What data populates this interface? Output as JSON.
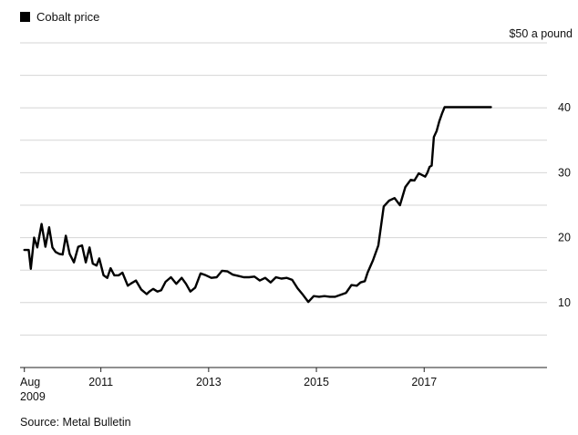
{
  "legend": {
    "label": "Cobalt price"
  },
  "source": "Source: Metal Bulletin",
  "chart_data": {
    "type": "line",
    "title": "",
    "xlabel": "",
    "ylabel": "",
    "y_unit_label": "$50 a pound",
    "ylim": [
      0,
      50
    ],
    "xlim": [
      2009.5,
      2018.4
    ],
    "grid": true,
    "legend_position": "top-left",
    "line_color": "#000000",
    "y_ticks": [
      {
        "value": 10,
        "label": "10"
      },
      {
        "value": 20,
        "label": "20"
      },
      {
        "value": 30,
        "label": "30"
      },
      {
        "value": 40,
        "label": "40"
      }
    ],
    "x_ticks": [
      {
        "value": 2009.58,
        "label": "Aug",
        "sublabel": "2009"
      },
      {
        "value": 2011.0,
        "label": "2011"
      },
      {
        "value": 2013.0,
        "label": "2013"
      },
      {
        "value": 2015.0,
        "label": "2015"
      },
      {
        "value": 2017.0,
        "label": "2017"
      }
    ],
    "series": [
      {
        "name": "Cobalt price",
        "x": [
          2009.58,
          2009.66,
          2009.7,
          2009.76,
          2009.82,
          2009.9,
          2009.97,
          2010.04,
          2010.1,
          2010.16,
          2010.23,
          2010.29,
          2010.35,
          2010.42,
          2010.5,
          2010.58,
          2010.65,
          2010.72,
          2010.79,
          2010.85,
          2010.92,
          2010.97,
          2011.05,
          2011.12,
          2011.18,
          2011.25,
          2011.33,
          2011.4,
          2011.5,
          2011.55,
          2011.65,
          2011.75,
          2011.85,
          2011.9,
          2011.97,
          2012.05,
          2012.12,
          2012.2,
          2012.3,
          2012.4,
          2012.5,
          2012.58,
          2012.66,
          2012.75,
          2012.85,
          2012.95,
          2013.05,
          2013.15,
          2013.25,
          2013.35,
          2013.45,
          2013.55,
          2013.65,
          2013.75,
          2013.85,
          2013.95,
          2014.05,
          2014.15,
          2014.25,
          2014.35,
          2014.45,
          2014.55,
          2014.65,
          2014.75,
          2014.85,
          2014.95,
          2015.05,
          2015.15,
          2015.25,
          2015.35,
          2015.45,
          2015.55,
          2015.65,
          2015.75,
          2015.82,
          2015.9,
          2015.95,
          2016.05,
          2016.15,
          2016.25,
          2016.35,
          2016.45,
          2016.55,
          2016.65,
          2016.75,
          2016.82,
          2016.9,
          2016.97,
          2017.02,
          2017.06,
          2017.1,
          2017.14,
          2017.18,
          2017.23,
          2017.28,
          2017.33,
          2017.38,
          2017.43,
          2017.48,
          2017.53,
          2017.58,
          2017.63,
          2017.68,
          2017.73,
          2017.78,
          2017.83,
          2017.88,
          2017.92,
          2017.95,
          2017.99,
          2018.05,
          2018.12,
          2018.2,
          2018.24
        ],
        "y": [
          18.1,
          18.1,
          15.2,
          20.0,
          18.5,
          22.1,
          18.6,
          21.6,
          18.5,
          17.8,
          17.5,
          17.4,
          20.3,
          17.5,
          16.2,
          18.6,
          18.8,
          16.2,
          18.5,
          16.0,
          15.7,
          16.8,
          14.2,
          13.8,
          15.3,
          14.2,
          14.2,
          14.6,
          12.6,
          12.9,
          13.4,
          12.0,
          11.3,
          11.7,
          12.1,
          11.7,
          11.9,
          13.2,
          13.9,
          12.9,
          13.8,
          12.9,
          11.7,
          12.3,
          14.5,
          14.2,
          13.8,
          13.9,
          14.9,
          14.8,
          14.3,
          14.1,
          13.9,
          13.9,
          14.0,
          13.4,
          13.8,
          13.1,
          13.9,
          13.7,
          13.8,
          13.5,
          12.2,
          11.2,
          10.1,
          11.0,
          10.9,
          11.0,
          10.9,
          10.9,
          11.2,
          11.5,
          12.7,
          12.6,
          13.1,
          13.3,
          14.6,
          16.5,
          18.8,
          24.8,
          25.7,
          26.1,
          25.0,
          27.8,
          28.9,
          28.8,
          29.9,
          29.6,
          29.4,
          30.0,
          30.9,
          31.1,
          35.5,
          36.4,
          37.9,
          39.1,
          40.1,
          40.1,
          40.1,
          40.1,
          40.1,
          40.1,
          40.1,
          40.1,
          40.1,
          40.1,
          40.1,
          40.1,
          40.1,
          40.1,
          40.1,
          40.1,
          40.1,
          40.1
        ]
      }
    ]
  }
}
